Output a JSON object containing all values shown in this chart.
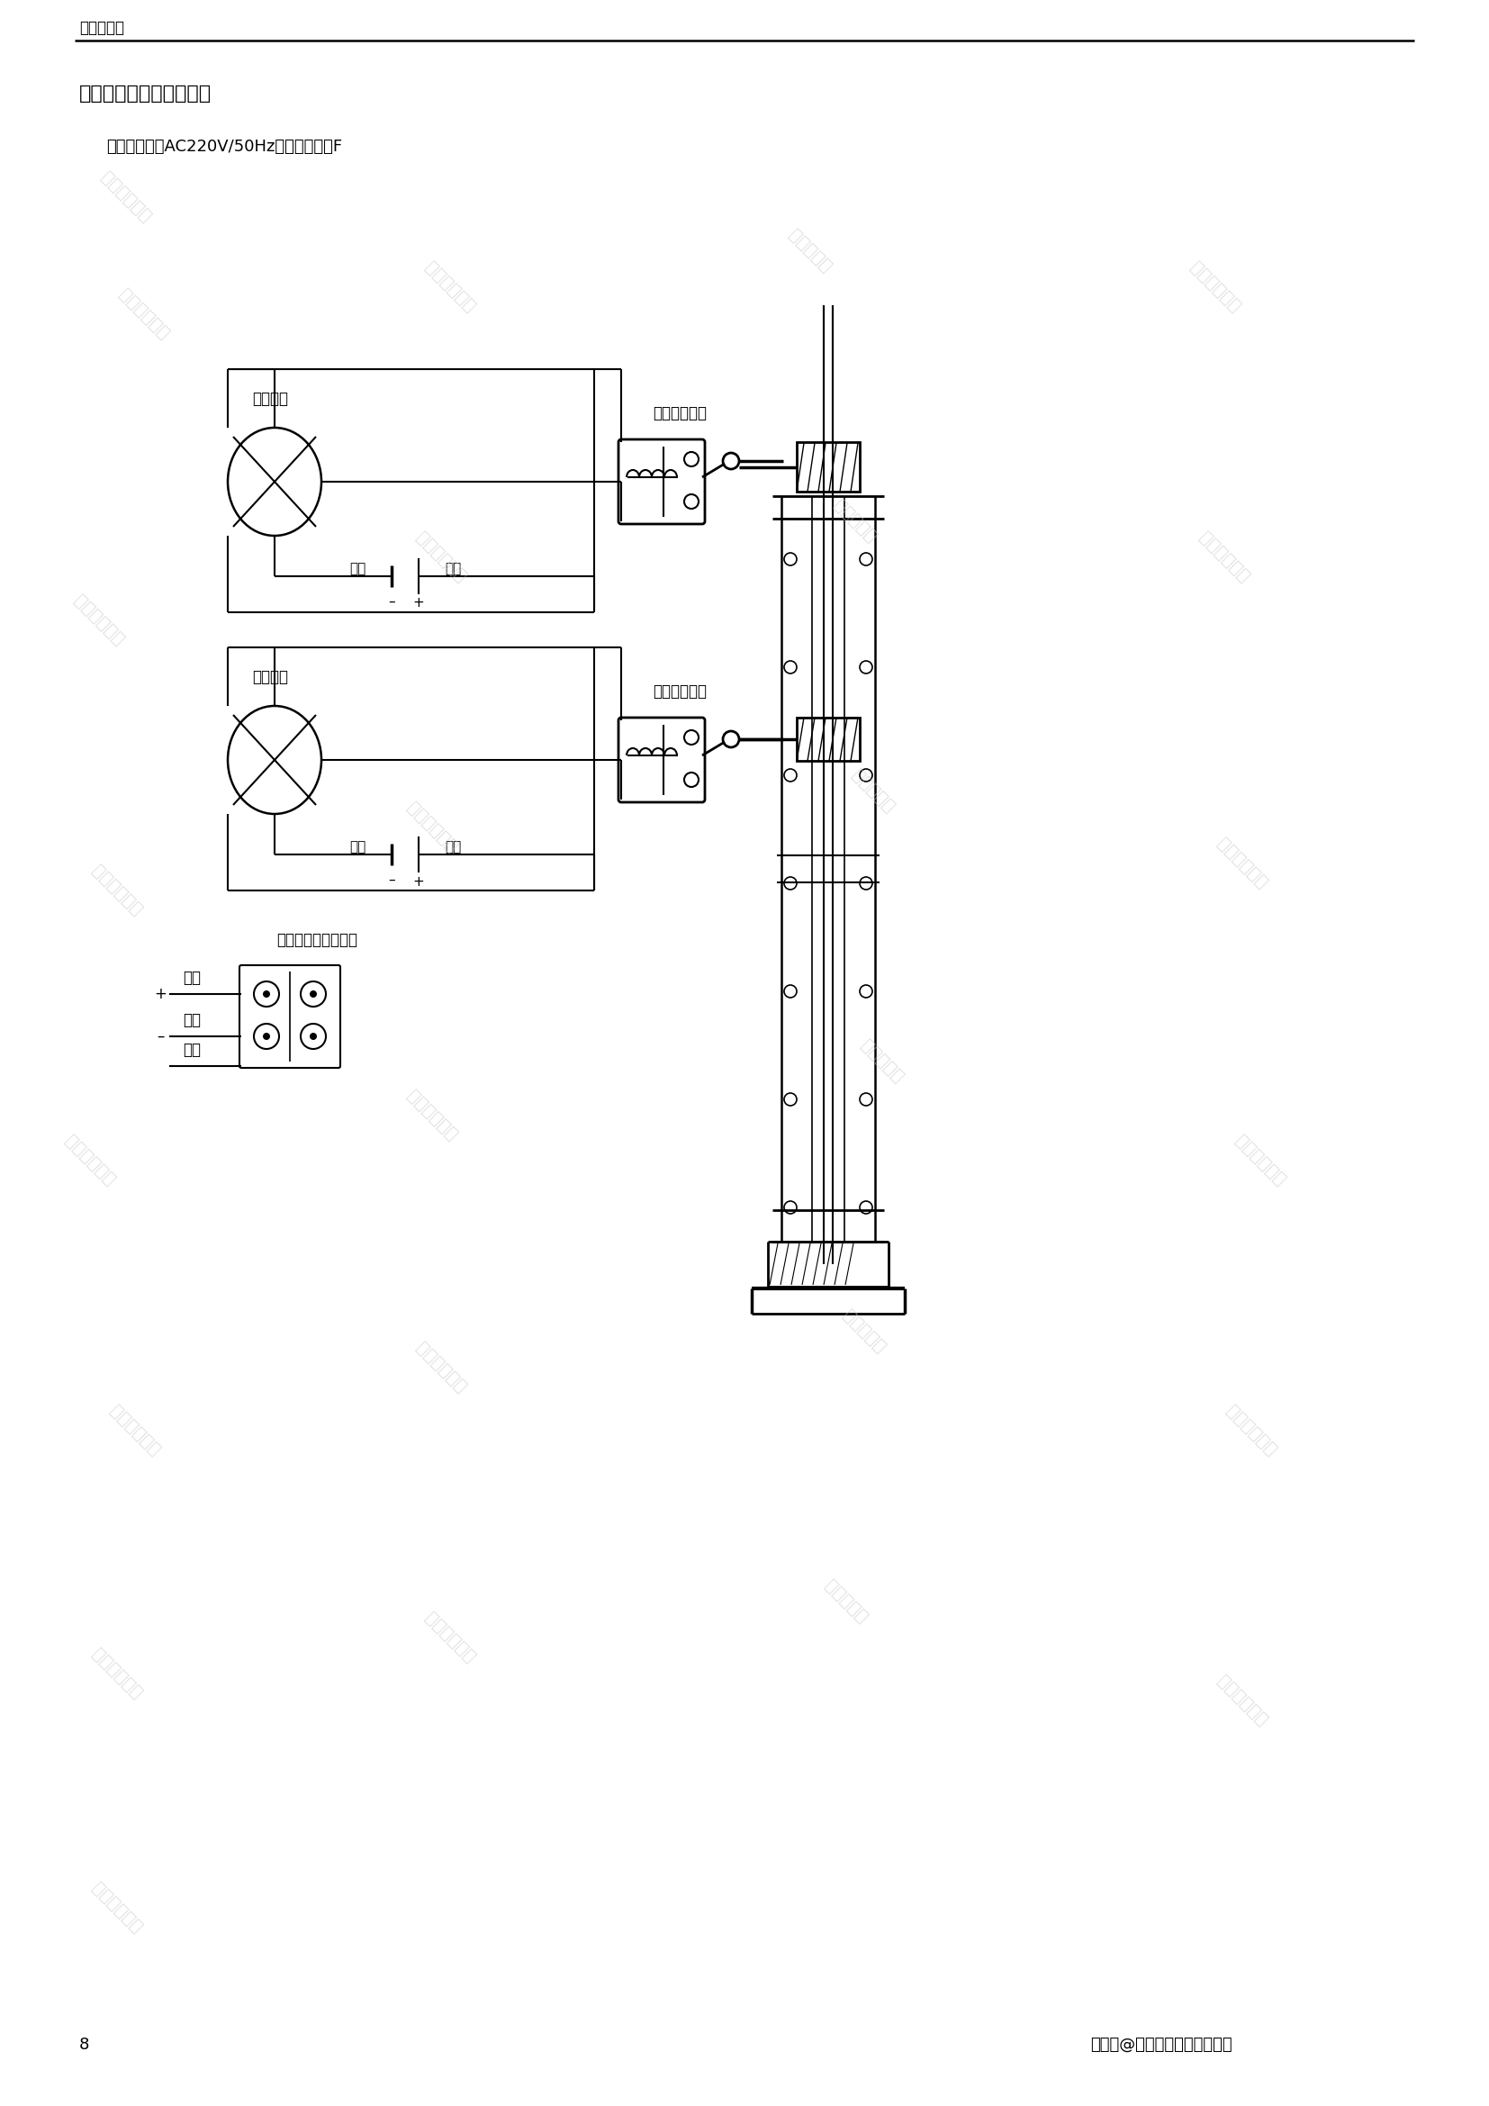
{
  "title_top": "抽气止回阀",
  "section_title": "八、接线图及电源要求：",
  "subtitle": "工作电源为：AC220V/50Hz，绶缘等级：F",
  "open_light_label": "开信号灯",
  "close_light_label": "关信号灯",
  "zero_label1": "零线",
  "fire_label1": "火线",
  "zero_label2": "零线",
  "fire_label2": "火线",
  "open_switch_label": "开阀行程开关",
  "close_switch_label": "关阀行程开关",
  "solenoid_label": "电磁阀电线安装端子",
  "fire_wire": "火线",
  "zero_wire": "零线",
  "ground_wire": "地线",
  "page_num": "8",
  "footer": "搜狐号@上海奇众阀门销售部门",
  "bg_color": "#ffffff",
  "line_color": "#000000",
  "wm1": "制造有限公司",
  "wm2": "上海奇众阀门",
  "wm3": "阀门制造有"
}
